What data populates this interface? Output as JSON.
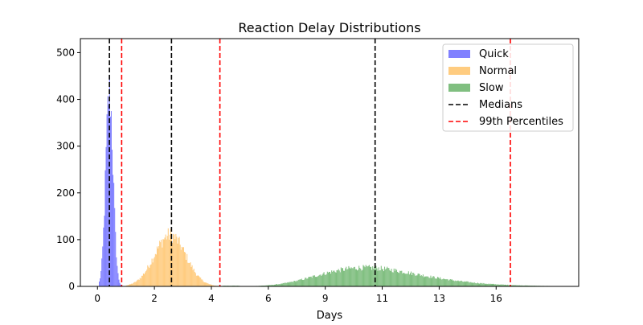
{
  "chart_data": {
    "type": "bar",
    "subtype": "overlaid-histogram",
    "title": "Reaction Delay Distributions",
    "xlabel": "Days",
    "ylabel": "",
    "xlim": [
      -0.6,
      16.9
    ],
    "ylim": [
      0,
      530
    ],
    "xticks": [
      0,
      2,
      4,
      6,
      9,
      11,
      13,
      16
    ],
    "xtick_labels": [
      "0",
      "2",
      "4",
      "6",
      "9",
      "11",
      "13",
      "16"
    ],
    "yticks": [
      0,
      100,
      200,
      300,
      400,
      500
    ],
    "ytick_labels": [
      "0",
      "100",
      "200",
      "300",
      "400",
      "500"
    ],
    "grid": false,
    "legend_placement": "top-right",
    "series": [
      {
        "name": "Quick",
        "color": "#8080ff",
        "dist": "normal",
        "mean": 0.42,
        "sd": 0.13,
        "peak": 415,
        "range": [
          0.05,
          1.0
        ]
      },
      {
        "name": "Normal",
        "color": "#ffcc80",
        "dist": "normal",
        "mean": 2.55,
        "sd": 0.55,
        "peak": 110,
        "range": [
          1.0,
          4.6
        ]
      },
      {
        "name": "Slow",
        "color": "#80bf80",
        "dist": "lognormal-ish",
        "mode": 9.4,
        "peak": 40,
        "range": [
          4.4,
          16.3
        ]
      }
    ],
    "vlines": [
      {
        "name": "Medians",
        "color": "#000000",
        "style": "dashed",
        "x": [
          0.42,
          2.6,
          9.75
        ]
      },
      {
        "name": "99th Percentiles",
        "color": "#ff0000",
        "style": "dashed",
        "x": [
          0.85,
          4.3,
          14.5
        ]
      }
    ],
    "legend": [
      "Quick",
      "Normal",
      "Slow",
      "Medians",
      "99th Percentiles"
    ]
  }
}
